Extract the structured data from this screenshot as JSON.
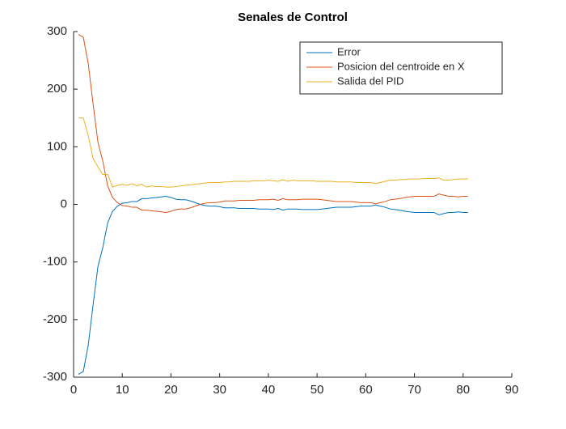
{
  "chart_data": {
    "type": "line",
    "title": "Senales de Control",
    "x": [
      1,
      2,
      3,
      4,
      5,
      6,
      7,
      8,
      9,
      10,
      11,
      12,
      13,
      14,
      15,
      16,
      17,
      18,
      19,
      20,
      21,
      22,
      23,
      24,
      25,
      26,
      27,
      28,
      29,
      30,
      31,
      32,
      33,
      34,
      35,
      36,
      37,
      38,
      39,
      40,
      41,
      42,
      43,
      44,
      45,
      46,
      47,
      48,
      49,
      50,
      51,
      52,
      53,
      54,
      55,
      56,
      57,
      58,
      59,
      60,
      61,
      62,
      63,
      64,
      65,
      66,
      67,
      68,
      69,
      70,
      71,
      72,
      73,
      74,
      75,
      76,
      77,
      78,
      79,
      80,
      81
    ],
    "series": [
      {
        "name": "Error",
        "color": "#0072BD",
        "values": [
          -295,
          -290,
          -245,
          -175,
          -108,
          -75,
          -32,
          -12,
          -3,
          2,
          3,
          5,
          5,
          10,
          10,
          11,
          12,
          13,
          14,
          12,
          9,
          8,
          8,
          6,
          3,
          0,
          -2,
          -3,
          -3,
          -4,
          -6,
          -6,
          -6,
          -7,
          -7,
          -7,
          -7,
          -8,
          -8,
          -8,
          -9,
          -7,
          -10,
          -8,
          -8,
          -8,
          -9,
          -9,
          -9,
          -9,
          -8,
          -7,
          -6,
          -5,
          -5,
          -5,
          -5,
          -4,
          -3,
          -3,
          -3,
          -1,
          -3,
          -5,
          -8,
          -9,
          -10,
          -12,
          -13,
          -14,
          -14,
          -14,
          -14,
          -14,
          -18,
          -16,
          -14,
          -14,
          -13,
          -14,
          -14
        ]
      },
      {
        "name": "Posicion del centroide en X",
        "color": "#D95319",
        "values": [
          295,
          290,
          245,
          175,
          108,
          75,
          32,
          12,
          3,
          -2,
          -3,
          -5,
          -5,
          -10,
          -10,
          -11,
          -12,
          -13,
          -14,
          -12,
          -9,
          -8,
          -8,
          -6,
          -3,
          0,
          2,
          3,
          3,
          4,
          6,
          6,
          6,
          7,
          7,
          7,
          7,
          8,
          8,
          8,
          9,
          7,
          10,
          8,
          8,
          8,
          9,
          9,
          9,
          9,
          8,
          7,
          6,
          5,
          5,
          5,
          5,
          4,
          3,
          3,
          3,
          1,
          3,
          5,
          8,
          9,
          10,
          12,
          13,
          14,
          14,
          14,
          14,
          14,
          18,
          16,
          14,
          14,
          13,
          14,
          14
        ]
      },
      {
        "name": "Salida del PID",
        "color": "#EDB120",
        "values": [
          150,
          150,
          120,
          80,
          65,
          52,
          52,
          30,
          33,
          35,
          33,
          36,
          32,
          35,
          30,
          32,
          31,
          31,
          30,
          30,
          31,
          32,
          33,
          34,
          35,
          36,
          37,
          38,
          38,
          38,
          39,
          39,
          40,
          40,
          40,
          40,
          41,
          41,
          41,
          42,
          41,
          40,
          43,
          40,
          42,
          41,
          41,
          41,
          41,
          40,
          40,
          40,
          40,
          39,
          39,
          39,
          39,
          38,
          38,
          38,
          38,
          36,
          38,
          40,
          42,
          42,
          43,
          43,
          44,
          44,
          44,
          45,
          45,
          45,
          46,
          42,
          42,
          43,
          44,
          44,
          44
        ]
      }
    ],
    "xlim": [
      0,
      90
    ],
    "xticks": [
      0,
      10,
      20,
      30,
      40,
      50,
      60,
      70,
      80,
      90
    ],
    "ylim": [
      -300,
      300
    ],
    "yticks": [
      -300,
      -200,
      -100,
      0,
      100,
      200,
      300
    ],
    "legend": "top-right"
  }
}
